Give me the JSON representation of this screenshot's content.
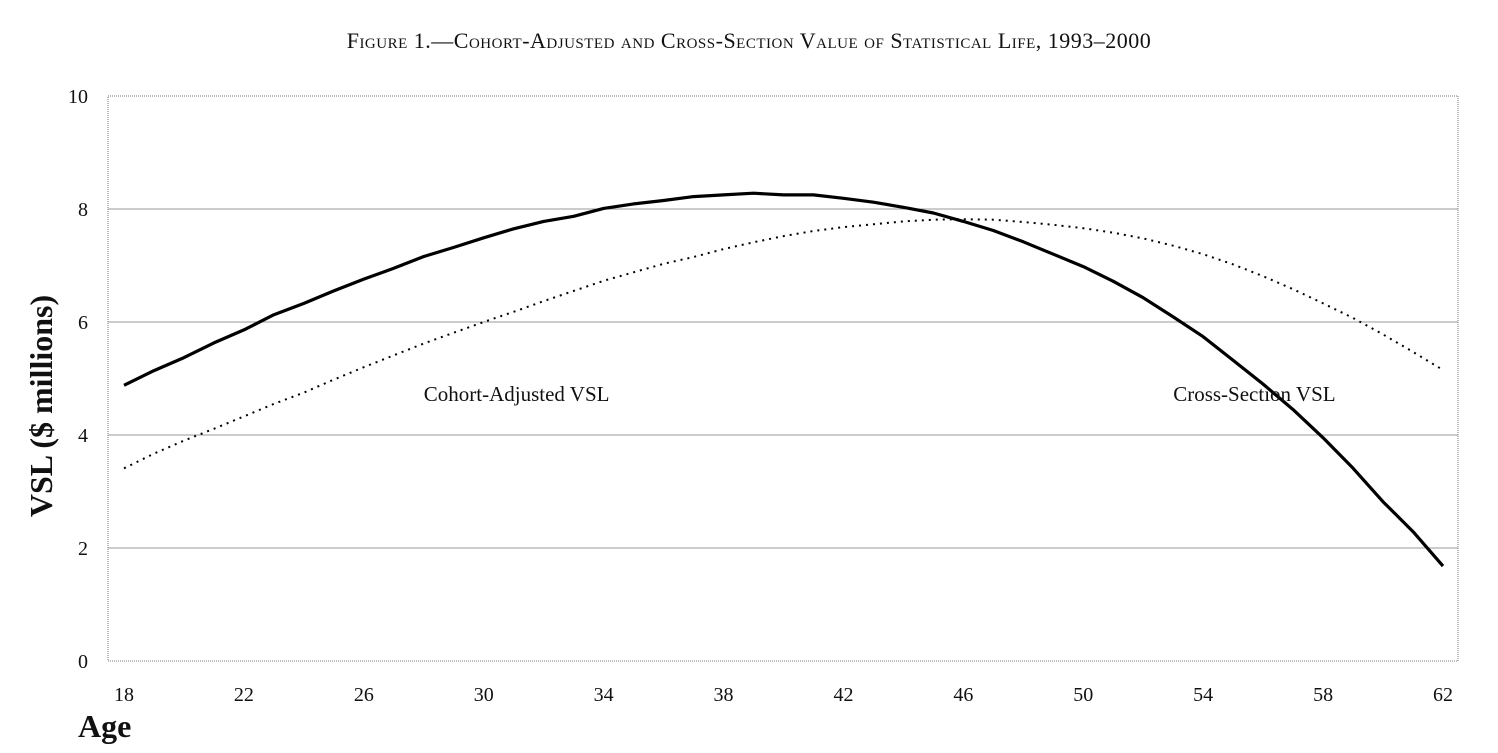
{
  "chart_data": {
    "type": "line",
    "title": "Figure 1.—Cohort-Adjusted and Cross-Section Value of Statistical Life, 1993–2000",
    "xlabel": "Age",
    "ylabel": "VSL ($ millions)",
    "xlim": [
      18,
      62
    ],
    "ylim": [
      0,
      10
    ],
    "grid": true,
    "xticks": [
      "18",
      "22",
      "26",
      "30",
      "34",
      "38",
      "42",
      "46",
      "50",
      "54",
      "58",
      "62"
    ],
    "yticks": [
      "0",
      "2",
      "4",
      "6",
      "8",
      "10"
    ],
    "annotations": [
      {
        "text": "Cohort-Adjusted VSL",
        "x": 28,
        "y": 4.6
      },
      {
        "text": "Cross-Section VSL",
        "x": 53,
        "y": 4.6
      }
    ],
    "series": [
      {
        "style": "solid",
        "x": [
          18,
          19,
          20,
          21,
          22,
          23,
          24,
          25,
          26,
          27,
          28,
          29,
          30,
          31,
          32,
          33,
          34,
          35,
          36,
          37,
          38,
          39,
          40,
          41,
          42,
          43,
          44,
          45,
          46,
          47,
          48,
          49,
          50,
          51,
          52,
          53,
          54,
          55,
          56,
          57,
          58,
          59,
          60,
          61,
          62
        ],
        "values": [
          4.88,
          5.14,
          5.37,
          5.63,
          5.86,
          6.13,
          6.33,
          6.55,
          6.76,
          6.95,
          7.16,
          7.32,
          7.49,
          7.65,
          7.78,
          7.87,
          8.01,
          8.09,
          8.15,
          8.22,
          8.25,
          8.28,
          8.25,
          8.25,
          8.19,
          8.12,
          8.03,
          7.93,
          7.78,
          7.62,
          7.42,
          7.2,
          6.98,
          6.72,
          6.43,
          6.09,
          5.74,
          5.32,
          4.9,
          4.45,
          3.95,
          3.41,
          2.82,
          2.29,
          1.68
        ]
      },
      {
        "style": "dotted",
        "x": [
          18,
          19,
          20,
          21,
          22,
          23,
          24,
          25,
          26,
          27,
          28,
          29,
          30,
          31,
          32,
          33,
          34,
          35,
          36,
          37,
          38,
          39,
          40,
          41,
          42,
          43,
          44,
          45,
          46,
          47,
          48,
          49,
          50,
          51,
          52,
          53,
          54,
          55,
          56,
          57,
          58,
          59,
          60,
          61,
          62
        ],
        "values": [
          3.41,
          3.67,
          3.9,
          4.11,
          4.33,
          4.55,
          4.75,
          4.98,
          5.2,
          5.41,
          5.62,
          5.81,
          6.0,
          6.18,
          6.37,
          6.55,
          6.73,
          6.88,
          7.03,
          7.15,
          7.29,
          7.41,
          7.52,
          7.61,
          7.68,
          7.73,
          7.78,
          7.81,
          7.82,
          7.81,
          7.77,
          7.72,
          7.66,
          7.58,
          7.48,
          7.35,
          7.2,
          7.02,
          6.81,
          6.58,
          6.33,
          6.07,
          5.78,
          5.47,
          5.15
        ]
      }
    ]
  }
}
